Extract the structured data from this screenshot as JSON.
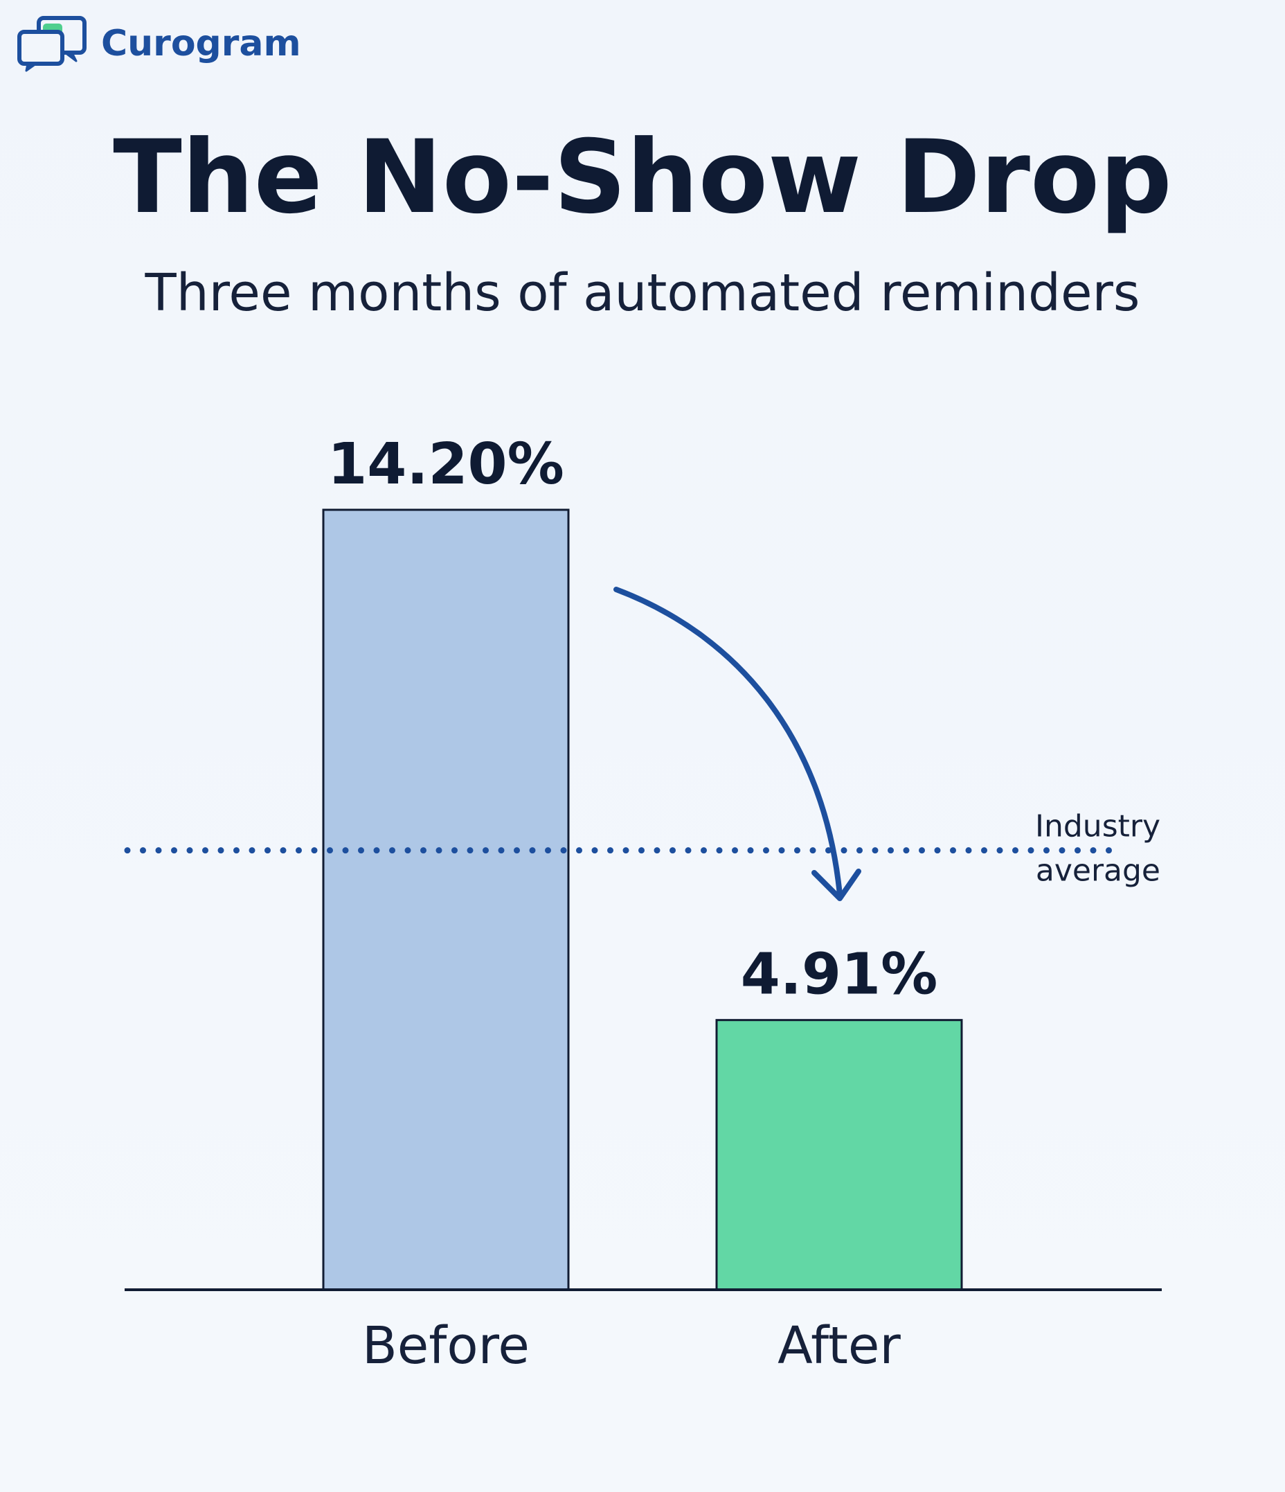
{
  "brand": {
    "name": "Curogram",
    "icon": "chat-bubbles-icon",
    "color": "#1d4f9e"
  },
  "chart_data": {
    "type": "bar",
    "title": "The No-Show Drop",
    "subtitle": "Three months of automated reminders",
    "categories": [
      "Before",
      "After"
    ],
    "values": [
      14.2,
      4.91
    ],
    "value_labels": [
      "14.20%",
      "4.91%"
    ],
    "unit": "%",
    "bar_colors": [
      "#aec7e6",
      "#62d7a5"
    ],
    "ylim": [
      0,
      16
    ],
    "grid": false,
    "reference_line": {
      "label": "Industry average",
      "style": "dotted",
      "color": "#1d4f9e",
      "value": 8.0
    },
    "annotation": {
      "type": "arrow",
      "from": "Before",
      "to": "After",
      "color": "#1d4f9e"
    }
  }
}
